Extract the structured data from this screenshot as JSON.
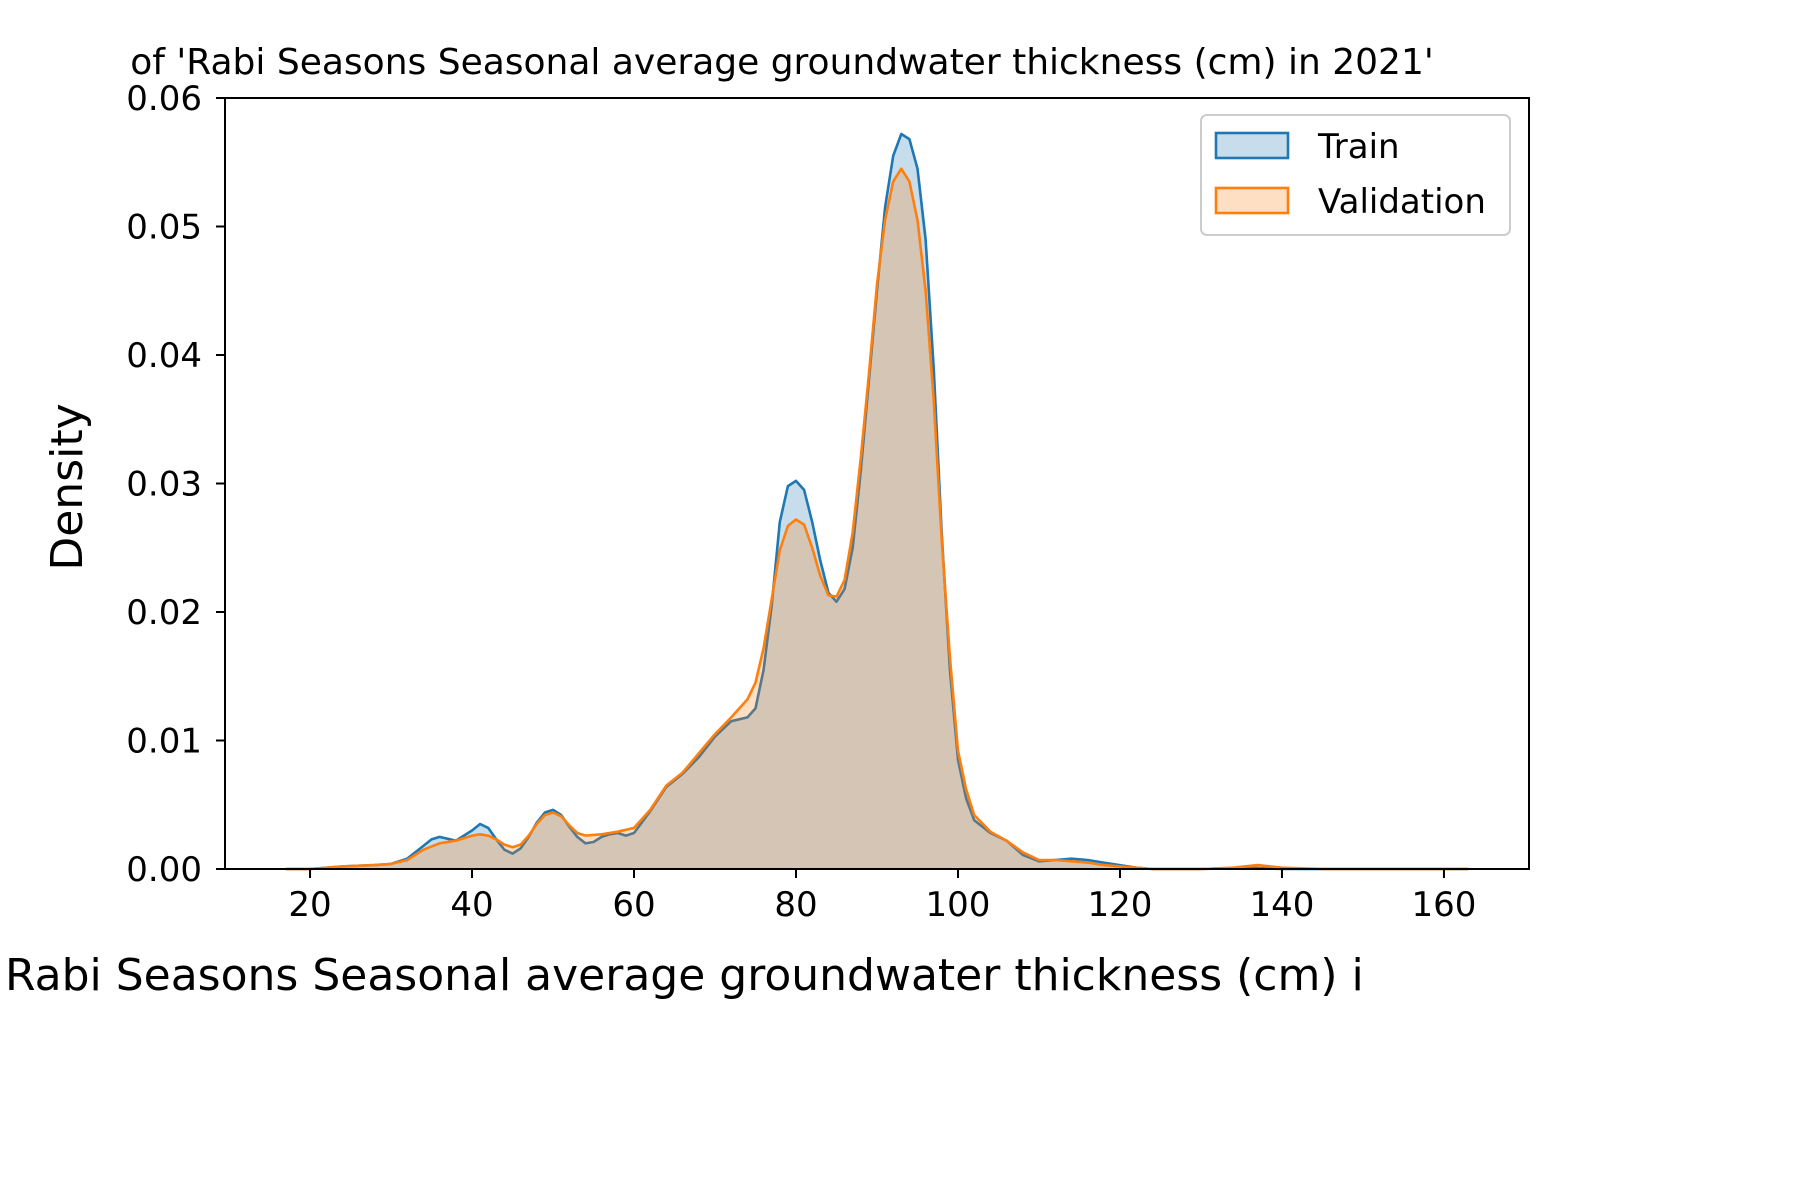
{
  "chart_data": {
    "type": "area",
    "title": "of 'Rabi Seasons Seasonal average groundwater thickness (cm) in 2021'",
    "xlabel": "Rabi Seasons Seasonal average groundwater thickness (cm) i",
    "ylabel": "Density",
    "xlim": [
      9.5,
      170.5
    ],
    "ylim": [
      0,
      0.06
    ],
    "xticks": [
      20,
      40,
      60,
      80,
      100,
      120,
      140,
      160
    ],
    "xtick_labels": [
      "20",
      "40",
      "60",
      "80",
      "100",
      "120",
      "140",
      "160"
    ],
    "yticks": [
      0,
      0.01,
      0.02,
      0.03,
      0.04,
      0.05,
      0.06
    ],
    "ytick_labels": [
      "0.00",
      "0.01",
      "0.02",
      "0.03",
      "0.04",
      "0.05",
      "0.06"
    ],
    "grid": false,
    "legend_position": "top-right",
    "series": [
      {
        "name": "Train",
        "color": "#1f77b4",
        "fill_color": "#1f77b4",
        "x": [
          17,
          20,
          24,
          28,
          30,
          32,
          34,
          35,
          36,
          38,
          40,
          41,
          42,
          43,
          44,
          45,
          46,
          47,
          48,
          49,
          50,
          51,
          52,
          53,
          54,
          55,
          56,
          57,
          58,
          59,
          60,
          62,
          64,
          66,
          68,
          70,
          72,
          74,
          75,
          76,
          77,
          78,
          79,
          80,
          81,
          82,
          83,
          84,
          85,
          86,
          87,
          88,
          89,
          90,
          91,
          92,
          93,
          94,
          95,
          96,
          97,
          98,
          99,
          100,
          101,
          102,
          104,
          106,
          108,
          110,
          112,
          114,
          116,
          118,
          120,
          122,
          124,
          130,
          136,
          140,
          150,
          163
        ],
        "y": [
          0,
          0,
          0.0002,
          0.0003,
          0.0004,
          0.0008,
          0.0018,
          0.0023,
          0.0025,
          0.0022,
          0.003,
          0.0035,
          0.0032,
          0.0023,
          0.0015,
          0.0012,
          0.0016,
          0.0025,
          0.0036,
          0.0044,
          0.0046,
          0.0042,
          0.0033,
          0.0025,
          0.002,
          0.0021,
          0.0025,
          0.0027,
          0.0028,
          0.0026,
          0.0028,
          0.0045,
          0.0064,
          0.0074,
          0.0087,
          0.0103,
          0.0115,
          0.0118,
          0.0125,
          0.0155,
          0.0205,
          0.027,
          0.0298,
          0.0302,
          0.0295,
          0.027,
          0.024,
          0.0215,
          0.0208,
          0.0218,
          0.025,
          0.031,
          0.038,
          0.045,
          0.0515,
          0.0555,
          0.0572,
          0.0568,
          0.0545,
          0.049,
          0.039,
          0.026,
          0.0155,
          0.0085,
          0.0055,
          0.0038,
          0.0028,
          0.0022,
          0.0011,
          0.0006,
          0.0007,
          0.0008,
          0.0007,
          0.0005,
          0.0003,
          0.0001,
          0,
          0,
          0.0001,
          0,
          0,
          0
        ]
      },
      {
        "name": "Validation",
        "color": "#ff7f0e",
        "fill_color": "#ff7f0e",
        "x": [
          17,
          20,
          24,
          28,
          30,
          32,
          34,
          36,
          38,
          40,
          41,
          42,
          43,
          44,
          45,
          46,
          47,
          48,
          49,
          50,
          51,
          52,
          53,
          54,
          56,
          58,
          60,
          62,
          64,
          66,
          68,
          70,
          72,
          74,
          75,
          76,
          77,
          78,
          79,
          80,
          81,
          82,
          83,
          84,
          85,
          86,
          87,
          88,
          89,
          90,
          91,
          92,
          93,
          94,
          95,
          96,
          97,
          98,
          99,
          100,
          101,
          102,
          104,
          106,
          108,
          110,
          112,
          114,
          116,
          118,
          120,
          124,
          130,
          134,
          137,
          140,
          145,
          163
        ],
        "y": [
          0,
          0,
          0.0002,
          0.0003,
          0.0004,
          0.0007,
          0.0015,
          0.002,
          0.0022,
          0.0026,
          0.0027,
          0.0026,
          0.0023,
          0.0019,
          0.0017,
          0.0019,
          0.0026,
          0.0035,
          0.0042,
          0.0044,
          0.0041,
          0.0034,
          0.0028,
          0.0026,
          0.0027,
          0.0029,
          0.0032,
          0.0046,
          0.0065,
          0.0075,
          0.009,
          0.0105,
          0.0118,
          0.0132,
          0.0145,
          0.0172,
          0.021,
          0.0248,
          0.0267,
          0.0272,
          0.0268,
          0.025,
          0.0228,
          0.0213,
          0.0212,
          0.0225,
          0.0262,
          0.032,
          0.0385,
          0.0455,
          0.0505,
          0.0535,
          0.0545,
          0.0535,
          0.0505,
          0.045,
          0.0365,
          0.0255,
          0.0165,
          0.0092,
          0.0062,
          0.0042,
          0.0029,
          0.0022,
          0.0013,
          0.0007,
          0.0007,
          0.0006,
          0.0005,
          0.0003,
          0.0002,
          0,
          0,
          0.0001,
          0.0003,
          0.0001,
          0,
          0
        ]
      }
    ]
  }
}
